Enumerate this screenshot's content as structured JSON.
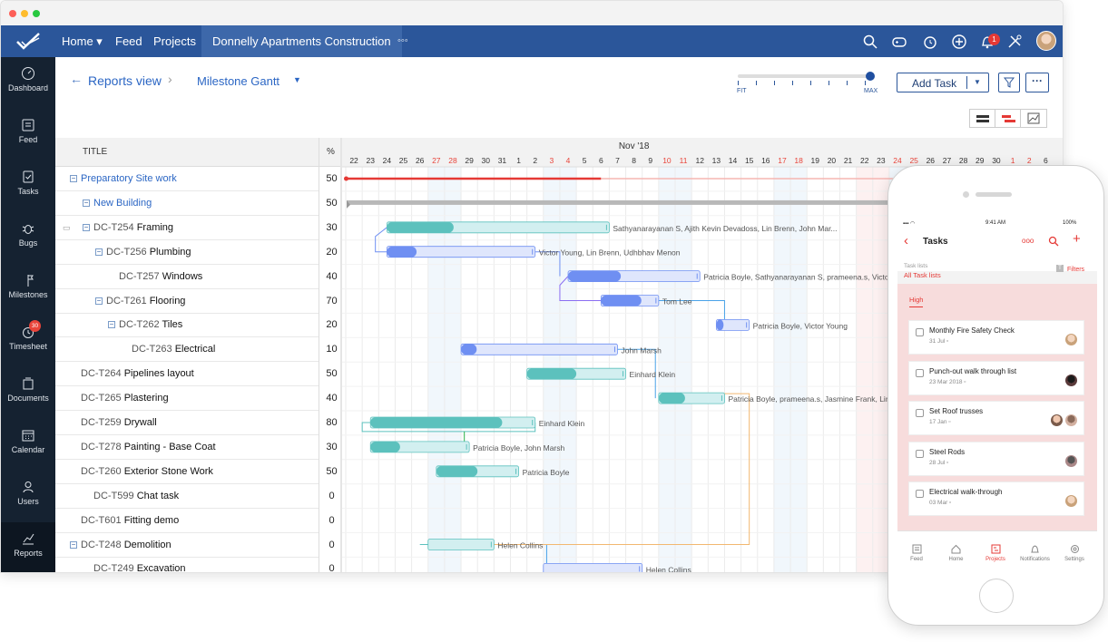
{
  "nav": {
    "home": "Home",
    "feed": "Feed",
    "projects": "Projects",
    "project_title": "Donnelly Apartments Construction",
    "more": "◦◦◦",
    "notif_count": "1"
  },
  "sidebar": [
    {
      "label": "Dashboard",
      "icon": "dashboard-icon"
    },
    {
      "label": "Feed",
      "icon": "feed-icon"
    },
    {
      "label": "Tasks",
      "icon": "tasks-icon"
    },
    {
      "label": "Bugs",
      "icon": "bug-icon"
    },
    {
      "label": "Milestones",
      "icon": "milestone-icon"
    },
    {
      "label": "Timesheet",
      "icon": "timesheet-icon",
      "badge": "30"
    },
    {
      "label": "Documents",
      "icon": "documents-icon"
    },
    {
      "label": "Calendar",
      "icon": "calendar-icon"
    },
    {
      "label": "Users",
      "icon": "users-icon"
    },
    {
      "label": "Reports",
      "icon": "reports-icon",
      "active": true
    }
  ],
  "toolbar": {
    "back": "Reports view",
    "view": "Milestone Gantt",
    "fit": "FIT",
    "max": "MAX",
    "add_task": "Add Task"
  },
  "grid": {
    "title_header": "TITLE",
    "pct_header": "%",
    "month": "Nov '18"
  },
  "days": [
    "22",
    "23",
    "24",
    "25",
    "26",
    "27",
    "28",
    "29",
    "30",
    "31",
    "1",
    "2",
    "3",
    "4",
    "5",
    "6",
    "7",
    "8",
    "9",
    "10",
    "11",
    "12",
    "13",
    "14",
    "15",
    "16",
    "17",
    "18",
    "19",
    "20",
    "21",
    "22",
    "23",
    "24",
    "25",
    "26",
    "27",
    "28",
    "29",
    "30",
    "1",
    "2",
    "6"
  ],
  "weekend_idx": [
    5,
    6,
    12,
    13,
    19,
    20,
    26,
    27,
    33,
    34,
    40,
    41
  ],
  "rows": [
    {
      "id": "",
      "name": "Preparatory Site work",
      "pct": "50",
      "level": 0,
      "toggle": true,
      "link": true
    },
    {
      "id": "",
      "name": "New Building",
      "pct": "50",
      "level": 1,
      "toggle": true,
      "link": true
    },
    {
      "id": "DC-T254",
      "name": "Framing",
      "pct": "30",
      "level": 1,
      "toggle": true,
      "comment": true
    },
    {
      "id": "DC-T256",
      "name": "Plumbing",
      "pct": "20",
      "level": 2,
      "toggle": true
    },
    {
      "id": "DC-T257",
      "name": "Windows",
      "pct": "40",
      "level": 3
    },
    {
      "id": "DC-T261",
      "name": "Flooring",
      "pct": "70",
      "level": 2,
      "toggle": true
    },
    {
      "id": "DC-T262",
      "name": "Tiles",
      "pct": "20",
      "level": 3,
      "toggle": true
    },
    {
      "id": "DC-T263",
      "name": "Electrical",
      "pct": "10",
      "level": 4
    },
    {
      "id": "DC-T264",
      "name": "Pipelines layout",
      "pct": "50",
      "level": 0
    },
    {
      "id": "DC-T265",
      "name": "Plastering",
      "pct": "40",
      "level": 0
    },
    {
      "id": "DC-T259",
      "name": "Drywall",
      "pct": "80",
      "level": 0
    },
    {
      "id": "DC-T278",
      "name": "Painting - Base Coat",
      "pct": "30",
      "level": 0
    },
    {
      "id": "DC-T260",
      "name": "Exterior Stone Work",
      "pct": "50",
      "level": 0
    },
    {
      "id": "DC-T599",
      "name": "Chat task",
      "pct": "0",
      "level": 1
    },
    {
      "id": "DC-T601",
      "name": "Fitting demo",
      "pct": "0",
      "level": 0
    },
    {
      "id": "DC-T248",
      "name": "Demolition",
      "pct": "0",
      "level": 0,
      "toggle": true
    },
    {
      "id": "DC-T249",
      "name": "Excavation",
      "pct": "0",
      "level": 1
    }
  ],
  "bars": [
    {
      "row": 2,
      "start": 2.5,
      "end": 16,
      "progress": 0.3,
      "color": "teal",
      "label": "Sathyanarayanan S, Ajith Kevin Devadoss, Lin Brenn, John Mar..."
    },
    {
      "row": 3,
      "start": 2.5,
      "end": 11.5,
      "progress": 0.2,
      "color": "blue",
      "label": "Victor Young, Lin Brenn, Udhbhav Menon"
    },
    {
      "row": 4,
      "start": 13.5,
      "end": 21.5,
      "progress": 0.4,
      "color": "blue",
      "label": "Patricia Boyle, Sathyanarayanan S, prameena.s, Victor"
    },
    {
      "row": 5,
      "start": 15.5,
      "end": 19,
      "progress": 0.7,
      "color": "blue",
      "label": "Tom Lee"
    },
    {
      "row": 6,
      "start": 22.5,
      "end": 24.5,
      "progress": 0.2,
      "color": "blue",
      "label": "Patricia Boyle, Victor Young"
    },
    {
      "row": 7,
      "start": 7,
      "end": 16.5,
      "progress": 0.1,
      "color": "blue",
      "label": "John Marsh"
    },
    {
      "row": 8,
      "start": 11,
      "end": 17,
      "progress": 0.5,
      "color": "teal",
      "label": "Einhard Klein"
    },
    {
      "row": 9,
      "start": 19,
      "end": 23,
      "progress": 0.4,
      "color": "teal",
      "label": "Patricia Boyle, prameena.s, Jasmine Frank, Lin Br"
    },
    {
      "row": 10,
      "start": 1.5,
      "end": 11.5,
      "progress": 0.8,
      "color": "teal",
      "label": "Einhard Klein"
    },
    {
      "row": 11,
      "start": 1.5,
      "end": 7.5,
      "progress": 0.3,
      "color": "teal",
      "label": "Patricia Boyle, John Marsh"
    },
    {
      "row": 12,
      "start": 5.5,
      "end": 10.5,
      "progress": 0.5,
      "color": "teal",
      "label": "Patricia Boyle"
    },
    {
      "row": 15,
      "start": 5,
      "end": 9,
      "progress": 0,
      "color": "teal",
      "label": "Helen Collins"
    },
    {
      "row": 16,
      "start": 12,
      "end": 18,
      "progress": 0,
      "color": "blue",
      "label": "Helen Collins"
    }
  ],
  "phone": {
    "time": "9:41 AM",
    "battery": "100%",
    "title": "Tasks",
    "task_lists": "Task lists",
    "all_lists": "All Task lists",
    "filters": "Filters",
    "section": "High",
    "tasks": [
      {
        "name": "Monthly Fire Safety Check",
        "date": "31 Jul"
      },
      {
        "name": "Punch-out walk through list",
        "date": "23 Mar 2018"
      },
      {
        "name": "Set Roof trusses",
        "date": "17 Jan"
      },
      {
        "name": "Steel Rods",
        "date": "28 Jul"
      },
      {
        "name": "Electrical walk-through",
        "date": "03 Mar"
      }
    ],
    "tabs": [
      "Feed",
      "Home",
      "Projects",
      "Notifications",
      "Settings"
    ],
    "active_tab": "Projects"
  },
  "colors": {
    "nav": "#2b569a",
    "sidebar": "#152231",
    "teal": "#5cc1bd",
    "blue": "#6f8ff2",
    "weekend": "#e8443a",
    "accent": "#e53935"
  }
}
